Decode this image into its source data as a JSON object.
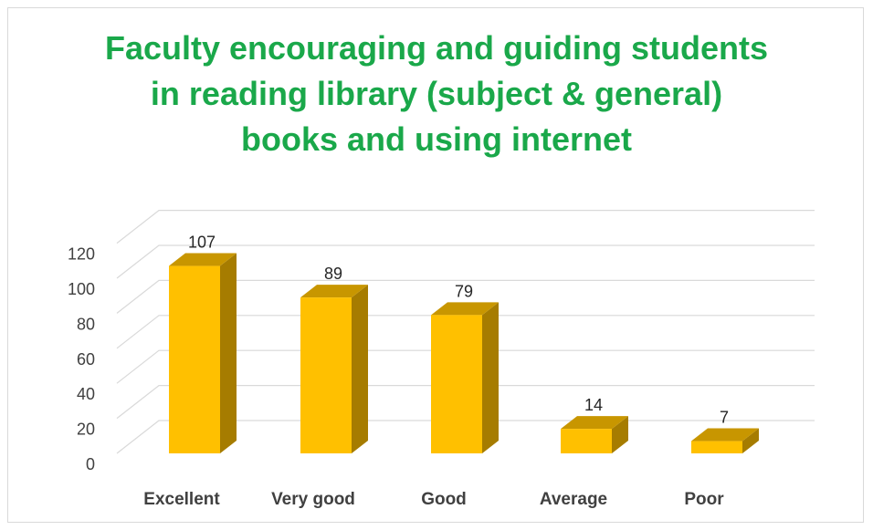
{
  "chart_data": {
    "type": "bar",
    "title_lines": [
      "Faculty encouraging and guiding students",
      "in reading library (subject & general)",
      "books and using internet"
    ],
    "categories": [
      "Excellent",
      "Very good",
      "Good",
      "Average",
      "Poor"
    ],
    "values": [
      107,
      89,
      79,
      14,
      7
    ],
    "data_labels": [
      "107",
      "89",
      "79",
      "14",
      "7"
    ],
    "yticks": [
      "0",
      "20",
      "40",
      "60",
      "80",
      "100",
      "120"
    ],
    "ylim": [
      0,
      120
    ],
    "grid": true,
    "legend": "none",
    "style": "3d-column",
    "colors": {
      "front": "#ffc000",
      "side": "#a67c00",
      "top": "#c89600",
      "title": "#1aa84a",
      "grid": "#d9d9d9"
    }
  }
}
